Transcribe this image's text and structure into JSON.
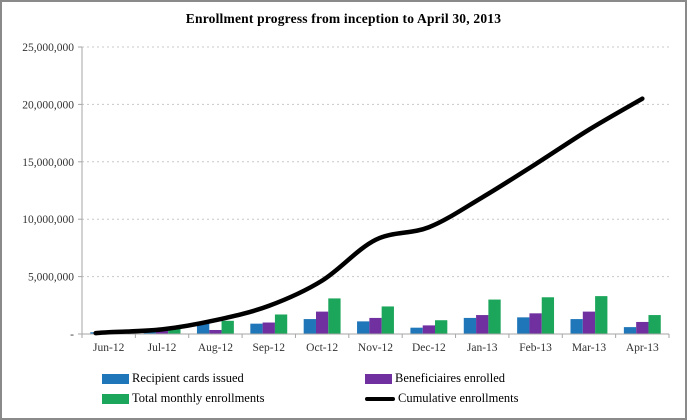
{
  "title": "Enrollment progress from inception to April 30, 2013",
  "colors": {
    "bar_blue": "#1F76B9",
    "bar_purple": "#7030A0",
    "bar_green": "#1CA65B",
    "line_black": "#000000",
    "gridline": "#C8C8C8",
    "axis": "#A6A6A6",
    "frame_border": "#8A8A8A",
    "text": "#333333"
  },
  "chart_data": {
    "type": "bar+line combo",
    "title": "Enrollment progress from inception to April 30, 2013",
    "categories": [
      "Jun-12",
      "Jul-12",
      "Aug-12",
      "Sep-12",
      "Oct-12",
      "Nov-12",
      "Dec-12",
      "Jan-13",
      "Feb-13",
      "Mar-13",
      "Apr-13"
    ],
    "series": [
      {
        "name": "Recipient cards issued",
        "type": "bar",
        "color": "#1F76B9",
        "values": [
          150000,
          250000,
          950000,
          900000,
          1300000,
          1100000,
          550000,
          1400000,
          1450000,
          1300000,
          600000
        ]
      },
      {
        "name": "Beneficiaires enrolled",
        "type": "bar",
        "color": "#7030A0",
        "values": [
          50000,
          400000,
          350000,
          1000000,
          1950000,
          1400000,
          750000,
          1650000,
          1800000,
          1950000,
          1050000
        ]
      },
      {
        "name": "Total monthly enrollments",
        "type": "bar",
        "color": "#1CA65B",
        "values": [
          100000,
          600000,
          1150000,
          1700000,
          3100000,
          2400000,
          1200000,
          3000000,
          3200000,
          3300000,
          1650000
        ]
      },
      {
        "name": "Cumulative enrollments",
        "type": "line",
        "color": "#000000",
        "values": [
          150000,
          400000,
          1200000,
          2450000,
          4650000,
          8200000,
          9300000,
          11900000,
          14800000,
          17800000,
          20500000
        ]
      }
    ],
    "xlabel": "",
    "ylabel": "",
    "ylim": [
      0,
      25000000
    ],
    "y_tick_step": 5000000,
    "y_tick_labels": [
      "25,000,000",
      "20,000,000",
      "15,000,000",
      "10,000,000",
      "5,000,000",
      "-"
    ],
    "grid": "horizontal dotted",
    "legend_position": "bottom, two columns"
  }
}
